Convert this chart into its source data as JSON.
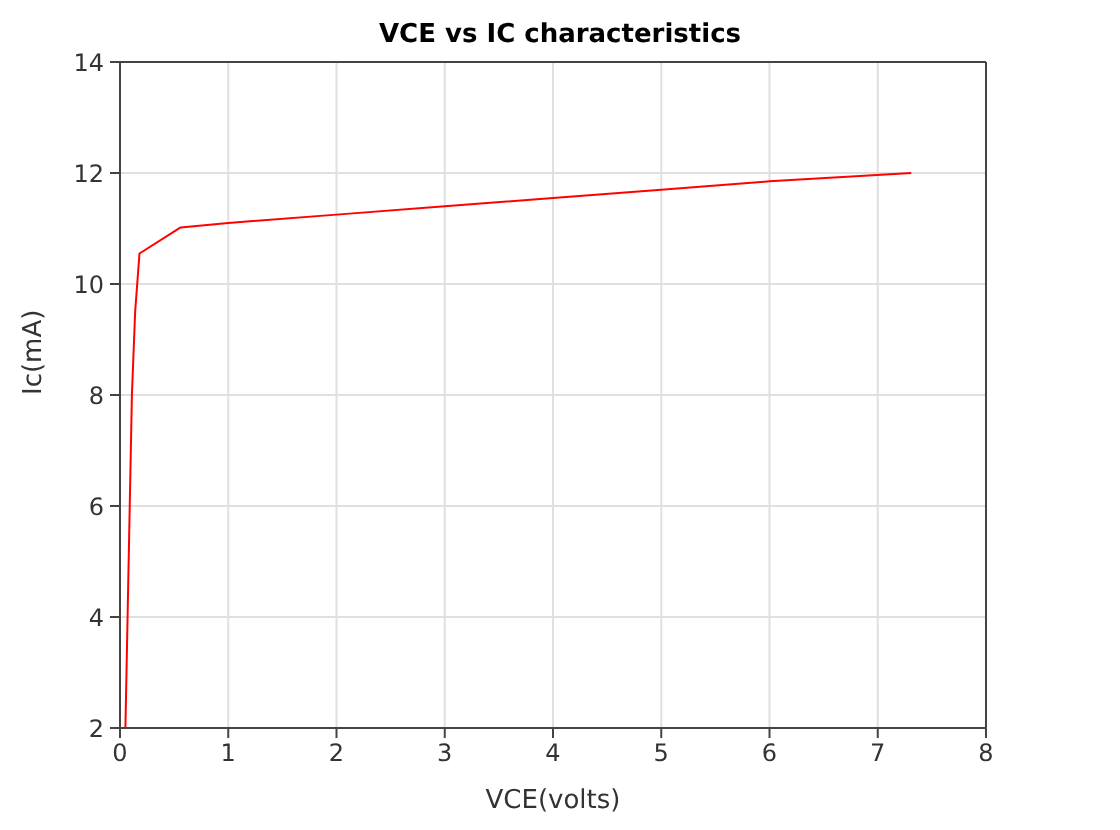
{
  "chart_data": {
    "type": "line",
    "title": "VCE vs IC characteristics",
    "xlabel": "VCE(volts)",
    "ylabel": "Ic(mA)",
    "x": [
      0.05,
      0.07,
      0.09,
      0.11,
      0.14,
      0.18,
      0.56,
      1,
      2,
      3,
      4,
      5,
      6,
      7.31
    ],
    "series": [
      {
        "color": "#ff0000",
        "values": [
          2,
          4,
          6,
          8,
          9.5,
          10.55,
          11.02,
          11.1,
          11.25,
          11.4,
          11.55,
          11.7,
          11.85,
          12
        ]
      }
    ],
    "xlim": [
      0,
      8
    ],
    "xticks": [
      0,
      1,
      2,
      3,
      4,
      5,
      6,
      7,
      8
    ],
    "ylim": [
      2,
      14
    ],
    "yticks": [
      2,
      4,
      6,
      8,
      10,
      12,
      14
    ],
    "grid": true,
    "legend": false,
    "marker": "none",
    "line_style": "solid"
  }
}
